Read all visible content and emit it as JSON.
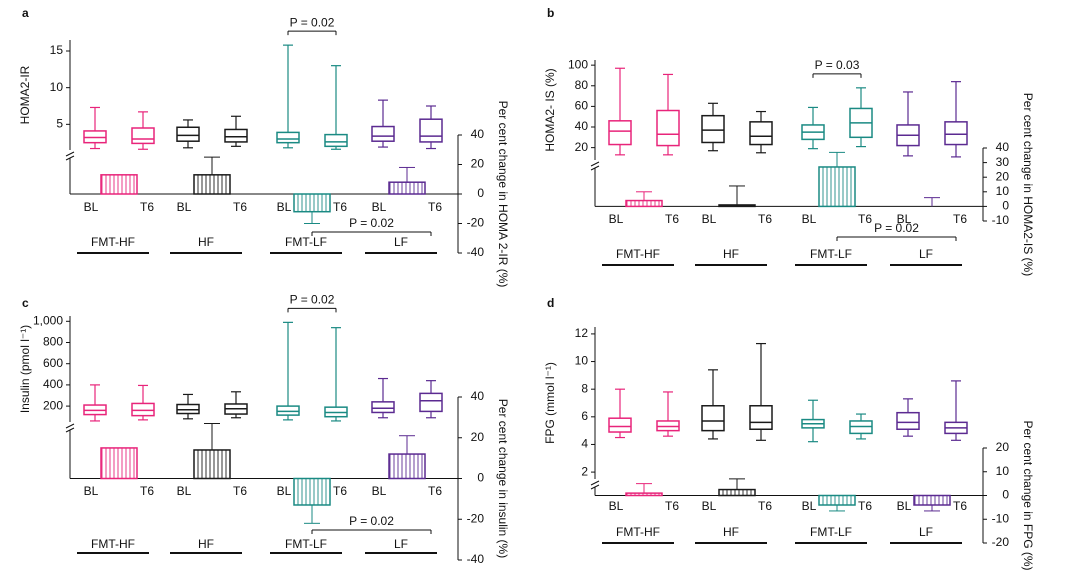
{
  "chart_data": [
    {
      "type": "box",
      "panel": "a",
      "ylabel": "HOMA2-IR",
      "y2label": "Per cent change in HOMA 2-IR (%)",
      "ylim": [
        1.5,
        16.5
      ],
      "yticks": [
        5,
        10,
        15
      ],
      "y2lim": [
        -40,
        40
      ],
      "y2ticks": [
        -40,
        -20,
        0,
        20,
        40
      ],
      "timepoints": [
        "BL",
        "T6"
      ],
      "p_within": "P = 0.02",
      "p_change": "P = 0.02",
      "series": [
        {
          "name": "FMT-HF",
          "color": "#e8247a",
          "bl": {
            "min": 1.7,
            "q1": 2.5,
            "median": 3.2,
            "q3": 4.1,
            "max": 7.3
          },
          "t6": {
            "min": 1.6,
            "q1": 2.4,
            "median": 3.0,
            "q3": 4.5,
            "max": 6.7
          },
          "change": 13,
          "change_error": null
        },
        {
          "name": "HF",
          "color": "#1a1a1a",
          "bl": {
            "min": 1.8,
            "q1": 2.7,
            "median": 3.5,
            "q3": 4.6,
            "max": 5.6
          },
          "t6": {
            "min": 2.0,
            "q1": 2.6,
            "median": 3.3,
            "q3": 4.3,
            "max": 6.1
          },
          "change": 13,
          "change_error": 12
        },
        {
          "name": "FMT-LF",
          "color": "#1a8a83",
          "bl": {
            "min": 1.8,
            "q1": 2.5,
            "median": 3.0,
            "q3": 3.9,
            "max": 15.8
          },
          "t6": {
            "min": 1.6,
            "q1": 2.0,
            "median": 2.6,
            "q3": 3.6,
            "max": 13.0
          },
          "change": -12,
          "change_error": 8
        },
        {
          "name": "LF",
          "color": "#5b2a91",
          "bl": {
            "min": 1.9,
            "q1": 2.7,
            "median": 3.4,
            "q3": 4.7,
            "max": 8.3
          },
          "t6": {
            "min": 1.7,
            "q1": 2.6,
            "median": 3.4,
            "q3": 5.7,
            "max": 7.5
          },
          "change": 8,
          "change_error": 10
        }
      ]
    },
    {
      "type": "box",
      "panel": "b",
      "ylabel": "HOMA2- IS (%)",
      "y2label": "Per cent change in HOMA2-IS (%)",
      "ylim": [
        8,
        105
      ],
      "yticks": [
        20,
        40,
        60,
        80,
        100
      ],
      "y2lim": [
        -10,
        40
      ],
      "y2ticks": [
        -10,
        0,
        10,
        20,
        30,
        40
      ],
      "timepoints": [
        "BL",
        "T6"
      ],
      "p_within": "P = 0.03",
      "p_change": "P = 0.02",
      "series": [
        {
          "name": "FMT-HF",
          "color": "#e8247a",
          "bl": {
            "min": 13,
            "q1": 23,
            "median": 36,
            "q3": 46,
            "max": 97
          },
          "t6": {
            "min": 13,
            "q1": 22,
            "median": 33,
            "q3": 56,
            "max": 91
          },
          "change": 4,
          "change_error": 6
        },
        {
          "name": "HF",
          "color": "#1a1a1a",
          "bl": {
            "min": 17,
            "q1": 25,
            "median": 37,
            "q3": 51,
            "max": 63
          },
          "t6": {
            "min": 15,
            "q1": 23,
            "median": 31,
            "q3": 45,
            "max": 55
          },
          "change": 1,
          "change_error": 13
        },
        {
          "name": "FMT-LF",
          "color": "#1a8a83",
          "bl": {
            "min": 19,
            "q1": 28,
            "median": 35,
            "q3": 42,
            "max": 59
          },
          "t6": {
            "min": 21,
            "q1": 30,
            "median": 44,
            "q3": 58,
            "max": 78
          },
          "change": 27,
          "change_error": 10
        },
        {
          "name": "LF",
          "color": "#5b2a91",
          "bl": {
            "min": 12,
            "q1": 22,
            "median": 32,
            "q3": 42,
            "max": 74
          },
          "t6": {
            "min": 11,
            "q1": 23,
            "median": 33,
            "q3": 45,
            "max": 84
          },
          "change": 0,
          "change_error": 6
        }
      ]
    },
    {
      "type": "box",
      "panel": "c",
      "ylabel": "Insulin (pmol l⁻¹)",
      "y2label": "Per cent change in insulin (%)",
      "ylim": [
        50,
        1050
      ],
      "yticks": [
        200,
        400,
        600,
        800,
        {
          "value": 1000,
          "label": "1,000"
        }
      ],
      "y2lim": [
        -40,
        40
      ],
      "y2ticks": [
        -40,
        -20,
        0,
        20,
        40
      ],
      "timepoints": [
        "BL",
        "T6"
      ],
      "p_within": "P = 0.02",
      "p_change": "P = 0.02",
      "series": [
        {
          "name": "FMT-HF",
          "color": "#e8247a",
          "bl": {
            "min": 60,
            "q1": 120,
            "median": 160,
            "q3": 210,
            "max": 400
          },
          "t6": {
            "min": 70,
            "q1": 110,
            "median": 160,
            "q3": 225,
            "max": 395
          },
          "change": 15,
          "change_error": null
        },
        {
          "name": "HF",
          "color": "#1a1a1a",
          "bl": {
            "min": 80,
            "q1": 130,
            "median": 165,
            "q3": 215,
            "max": 310
          },
          "t6": {
            "min": 90,
            "q1": 125,
            "median": 175,
            "q3": 220,
            "max": 335
          },
          "change": 14,
          "change_error": 13
        },
        {
          "name": "FMT-LF",
          "color": "#1a8a83",
          "bl": {
            "min": 70,
            "q1": 115,
            "median": 150,
            "q3": 200,
            "max": 990
          },
          "t6": {
            "min": 60,
            "q1": 100,
            "median": 140,
            "q3": 190,
            "max": 940
          },
          "change": -13,
          "change_error": 9
        },
        {
          "name": "LF",
          "color": "#5b2a91",
          "bl": {
            "min": 90,
            "q1": 140,
            "median": 180,
            "q3": 240,
            "max": 460
          },
          "t6": {
            "min": 90,
            "q1": 150,
            "median": 250,
            "q3": 320,
            "max": 440
          },
          "change": 12,
          "change_error": 9
        }
      ]
    },
    {
      "type": "box",
      "panel": "d",
      "ylabel": "FPG (mmol l⁻¹)",
      "y2label": "Per cent change in FPG (%)",
      "ylim": [
        1.5,
        12.5
      ],
      "yticks": [
        2,
        4,
        6,
        8,
        10,
        12
      ],
      "y2lim": [
        -20,
        20
      ],
      "y2ticks": [
        -20,
        -10,
        0,
        10,
        20
      ],
      "timepoints": [
        "BL",
        "T6"
      ],
      "series": [
        {
          "name": "FMT-HF",
          "color": "#e8247a",
          "bl": {
            "min": 4.5,
            "q1": 4.9,
            "median": 5.3,
            "q3": 5.9,
            "max": 8.0
          },
          "t6": {
            "min": 4.6,
            "q1": 5.0,
            "median": 5.3,
            "q3": 5.7,
            "max": 7.8
          },
          "change": 1,
          "change_error": 4
        },
        {
          "name": "HF",
          "color": "#1a1a1a",
          "bl": {
            "min": 4.4,
            "q1": 5.0,
            "median": 5.7,
            "q3": 6.8,
            "max": 9.4
          },
          "t6": {
            "min": 4.3,
            "q1": 5.1,
            "median": 5.6,
            "q3": 6.8,
            "max": 11.3
          },
          "change": 2.5,
          "change_error": 4.5
        },
        {
          "name": "FMT-LF",
          "color": "#1a8a83",
          "bl": {
            "min": 4.2,
            "q1": 5.2,
            "median": 5.5,
            "q3": 5.8,
            "max": 7.2
          },
          "t6": {
            "min": 4.4,
            "q1": 4.8,
            "median": 5.3,
            "q3": 5.7,
            "max": 6.2
          },
          "change": -4,
          "change_error": 2.5
        },
        {
          "name": "LF",
          "color": "#5b2a91",
          "bl": {
            "min": 4.6,
            "q1": 5.1,
            "median": 5.6,
            "q3": 6.3,
            "max": 7.3
          },
          "t6": {
            "min": 4.3,
            "q1": 4.8,
            "median": 5.2,
            "q3": 5.6,
            "max": 8.6
          },
          "change": -4,
          "change_error": 2.5
        }
      ]
    }
  ]
}
